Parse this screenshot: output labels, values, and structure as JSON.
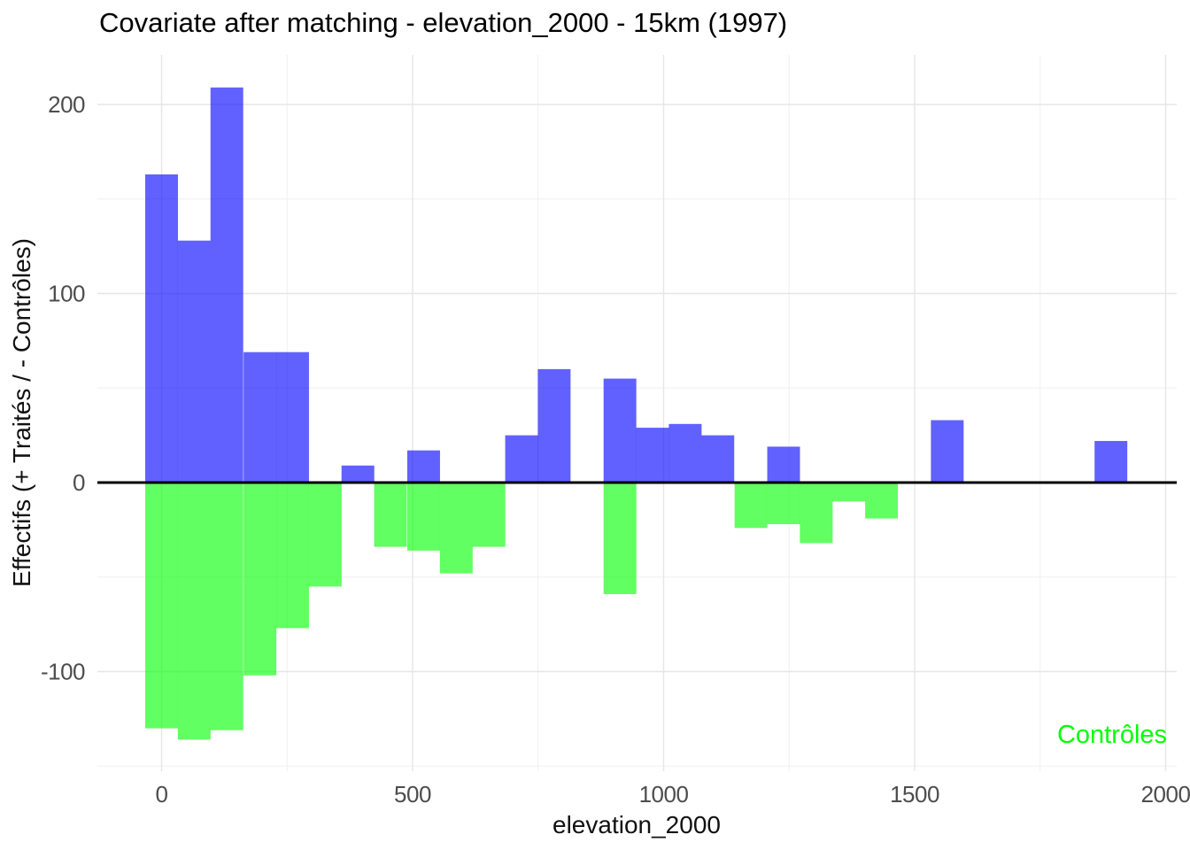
{
  "chart_data": {
    "type": "bar",
    "subtype": "diverging-histogram",
    "title": "Covariate after matching - elevation_2000 - 15km (1997)",
    "xlabel": "elevation_2000",
    "ylabel": "Effectifs (+ Traités / - Contrôles)",
    "x_ticks": {
      "major": [
        0,
        500,
        1000,
        1500,
        2000
      ],
      "minor": [
        250,
        750,
        1250,
        1750
      ]
    },
    "y_ticks": {
      "major": [
        200,
        100,
        0,
        -100
      ],
      "minor": [
        150,
        50,
        -50,
        -150
      ]
    },
    "xlim": [
      -128,
      2022
    ],
    "ylim": [
      -153,
      226
    ],
    "bin_width": 65.2,
    "zero_line": 0,
    "grid": {
      "color_major": "#e6e6e6",
      "color_minor": "#f0f0f0",
      "background": "#ffffff"
    },
    "series": [
      {
        "name": "Traités",
        "sign": "+",
        "color_base": "#0000FF",
        "color_blended": "#6666FF"
      },
      {
        "name": "Contrôles",
        "sign": "-",
        "color_base": "#00FF00",
        "color_blended": "#66FF66"
      }
    ],
    "bins": [
      {
        "x": 0,
        "traites": 163,
        "controles": -130
      },
      {
        "x": 65,
        "traites": 128,
        "controles": -136
      },
      {
        "x": 130,
        "traites": 209,
        "controles": -131
      },
      {
        "x": 196,
        "traites": 69,
        "controles": -102
      },
      {
        "x": 261,
        "traites": 69,
        "controles": -77
      },
      {
        "x": 326,
        "traites": 0,
        "controles": -55
      },
      {
        "x": 391,
        "traites": 9,
        "controles": 0
      },
      {
        "x": 456,
        "traites": 0,
        "controles": -34
      },
      {
        "x": 522,
        "traites": 17,
        "controles": -36
      },
      {
        "x": 587,
        "traites": 0,
        "controles": -48
      },
      {
        "x": 652,
        "traites": 0,
        "controles": -34
      },
      {
        "x": 717,
        "traites": 25,
        "controles": 0
      },
      {
        "x": 782,
        "traites": 60,
        "controles": 0
      },
      {
        "x": 848,
        "traites": 0,
        "controles": 0
      },
      {
        "x": 913,
        "traites": 55,
        "controles": -59
      },
      {
        "x": 978,
        "traites": 29,
        "controles": 0
      },
      {
        "x": 1043,
        "traites": 31,
        "controles": 0
      },
      {
        "x": 1108,
        "traites": 25,
        "controles": 0
      },
      {
        "x": 1174,
        "traites": 0,
        "controles": -24
      },
      {
        "x": 1239,
        "traites": 19,
        "controles": -22
      },
      {
        "x": 1304,
        "traites": 0,
        "controles": -32
      },
      {
        "x": 1369,
        "traites": 0,
        "controles": -10
      },
      {
        "x": 1434,
        "traites": 0,
        "controles": -19
      },
      {
        "x": 1500,
        "traites": 0,
        "controles": 0
      },
      {
        "x": 1565,
        "traites": 33,
        "controles": 0
      },
      {
        "x": 1630,
        "traites": 0,
        "controles": 0
      },
      {
        "x": 1695,
        "traites": 0,
        "controles": 0
      },
      {
        "x": 1760,
        "traites": 0,
        "controles": 0
      },
      {
        "x": 1826,
        "traites": 0,
        "controles": 0
      },
      {
        "x": 1891,
        "traites": 22,
        "controles": 0
      }
    ],
    "annotation": {
      "text": "Contrôles",
      "color": "#00FF00",
      "x": 1893,
      "y": -133
    }
  }
}
